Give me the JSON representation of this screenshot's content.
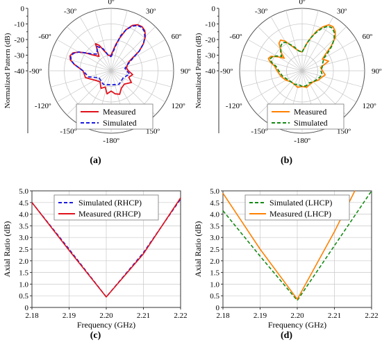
{
  "captions": [
    "(a)",
    "(b)",
    "(c)",
    "(d)"
  ],
  "colors": {
    "measured_a": "#e0101a",
    "simulated_a": "#1a1ae0",
    "measured_b": "#ff8000",
    "simulated_b": "#138a13",
    "grid": "#c8c8c8"
  },
  "chart_data": [
    {
      "type": "polar",
      "ylabel": "Normalized Pattern (dB)",
      "rlim": [
        -40,
        0
      ],
      "radial_ticks": [
        "0",
        "-10",
        "-20",
        "-30",
        "-40"
      ],
      "angle_labels": [
        "0º",
        "30º",
        "60º",
        "90º",
        "120º",
        "150º",
        "-180º",
        "-150º",
        "-120º",
        "-90º",
        "-60º",
        "-30º"
      ],
      "angle_deg": [
        0,
        30,
        60,
        90,
        120,
        150,
        180,
        210,
        240,
        270,
        300,
        330
      ],
      "legend": "bottom-right",
      "series": [
        {
          "name": "Measured",
          "color": "#e0101a",
          "style": "solid",
          "points": [
            [
              0,
              -30
            ],
            [
              10,
              -23
            ],
            [
              15,
              -18
            ],
            [
              20,
              -12
            ],
            [
              25,
              -8
            ],
            [
              30,
              -6
            ],
            [
              35,
              -5.5
            ],
            [
              40,
              -6.5
            ],
            [
              45,
              -9
            ],
            [
              50,
              -13
            ],
            [
              55,
              -18
            ],
            [
              60,
              -25
            ],
            [
              65,
              -28
            ],
            [
              70,
              -29
            ],
            [
              80,
              -30
            ],
            [
              90,
              -29
            ],
            [
              100,
              -26
            ],
            [
              110,
              -28
            ],
            [
              120,
              -25
            ],
            [
              135,
              -28
            ],
            [
              150,
              -27
            ],
            [
              160,
              -24
            ],
            [
              170,
              -25
            ],
            [
              180,
              -27
            ],
            [
              190,
              -25
            ],
            [
              200,
              -29
            ],
            [
              210,
              -27
            ],
            [
              225,
              -30
            ],
            [
              240,
              -28
            ],
            [
              255,
              -23
            ],
            [
              270,
              -22
            ],
            [
              280,
              -16
            ],
            [
              285,
              -13
            ],
            [
              290,
              -12
            ],
            [
              295,
              -13
            ],
            [
              300,
              -16
            ],
            [
              305,
              -20
            ],
            [
              310,
              -24
            ],
            [
              320,
              -28
            ],
            [
              330,
              -20
            ],
            [
              335,
              -22
            ],
            [
              340,
              -26
            ],
            [
              350,
              -30
            ],
            [
              360,
              -30
            ]
          ]
        },
        {
          "name": "Simulated",
          "color": "#1a1ae0",
          "style": "dashed",
          "points": [
            [
              0,
              -31
            ],
            [
              10,
              -24
            ],
            [
              15,
              -17
            ],
            [
              20,
              -12
            ],
            [
              25,
              -8.5
            ],
            [
              30,
              -6.5
            ],
            [
              35,
              -6
            ],
            [
              40,
              -7
            ],
            [
              45,
              -9.5
            ],
            [
              50,
              -13
            ],
            [
              55,
              -18
            ],
            [
              60,
              -24
            ],
            [
              70,
              -29
            ],
            [
              80,
              -31
            ],
            [
              90,
              -30
            ],
            [
              100,
              -28
            ],
            [
              120,
              -31
            ],
            [
              150,
              -30
            ],
            [
              180,
              -31
            ],
            [
              210,
              -30
            ],
            [
              240,
              -31
            ],
            [
              255,
              -25
            ],
            [
              270,
              -22
            ],
            [
              280,
              -16
            ],
            [
              285,
              -13.5
            ],
            [
              290,
              -12.5
            ],
            [
              295,
              -13.5
            ],
            [
              300,
              -16
            ],
            [
              305,
              -20
            ],
            [
              310,
              -23
            ],
            [
              320,
              -26
            ],
            [
              330,
              -22
            ],
            [
              340,
              -25
            ],
            [
              350,
              -30
            ],
            [
              360,
              -31
            ]
          ]
        }
      ],
      "caption": "(a)"
    },
    {
      "type": "polar",
      "ylabel": "Normalized Pattern (dB)",
      "rlim": [
        -40,
        0
      ],
      "radial_ticks": [
        "0",
        "-10",
        "-20",
        "-30",
        "-40"
      ],
      "angle_labels": [
        "0º",
        "30º",
        "60º",
        "90º",
        "120º",
        "150º",
        "-180º",
        "-150º",
        "-120º",
        "-90º",
        "-60º",
        "-30º"
      ],
      "angle_deg": [
        0,
        30,
        60,
        90,
        120,
        150,
        180,
        210,
        240,
        270,
        300,
        330
      ],
      "legend": "bottom-right",
      "series": [
        {
          "name": "Measured",
          "color": "#ff8000",
          "style": "solid",
          "points": [
            [
              0,
              -28
            ],
            [
              10,
              -22
            ],
            [
              15,
              -18
            ],
            [
              20,
              -13
            ],
            [
              25,
              -9
            ],
            [
              30,
              -6
            ],
            [
              35,
              -5.5
            ],
            [
              40,
              -7
            ],
            [
              45,
              -10
            ],
            [
              50,
              -16
            ],
            [
              55,
              -22
            ],
            [
              60,
              -25
            ],
            [
              70,
              -22
            ],
            [
              80,
              -28
            ],
            [
              90,
              -27
            ],
            [
              100,
              -25
            ],
            [
              110,
              -27
            ],
            [
              120,
              -28
            ],
            [
              135,
              -30
            ],
            [
              150,
              -30
            ],
            [
              165,
              -29
            ],
            [
              180,
              -30
            ],
            [
              195,
              -29
            ],
            [
              210,
              -30
            ],
            [
              225,
              -30
            ],
            [
              240,
              -28
            ],
            [
              255,
              -26
            ],
            [
              270,
              -24
            ],
            [
              280,
              -22
            ],
            [
              285,
              -19
            ],
            [
              290,
              -17
            ],
            [
              295,
              -18
            ],
            [
              300,
              -22
            ],
            [
              305,
              -26
            ],
            [
              310,
              -23
            ],
            [
              320,
              -17
            ],
            [
              325,
              -16
            ],
            [
              330,
              -18
            ],
            [
              340,
              -24
            ],
            [
              350,
              -27
            ],
            [
              360,
              -28
            ]
          ]
        },
        {
          "name": "Simulated",
          "color": "#138a13",
          "style": "dashed",
          "points": [
            [
              0,
              -28
            ],
            [
              10,
              -22
            ],
            [
              15,
              -18
            ],
            [
              20,
              -14
            ],
            [
              25,
              -10
            ],
            [
              30,
              -7
            ],
            [
              35,
              -6.5
            ],
            [
              40,
              -8
            ],
            [
              45,
              -11
            ],
            [
              50,
              -15
            ],
            [
              55,
              -20
            ],
            [
              60,
              -24
            ],
            [
              70,
              -26
            ],
            [
              80,
              -27
            ],
            [
              90,
              -28
            ],
            [
              100,
              -27
            ],
            [
              110,
              -28
            ],
            [
              120,
              -29
            ],
            [
              135,
              -30
            ],
            [
              150,
              -31
            ],
            [
              165,
              -30
            ],
            [
              180,
              -30
            ],
            [
              195,
              -31
            ],
            [
              210,
              -30
            ],
            [
              225,
              -30
            ],
            [
              240,
              -29
            ],
            [
              255,
              -27
            ],
            [
              270,
              -25
            ],
            [
              280,
              -23
            ],
            [
              285,
              -20
            ],
            [
              290,
              -18
            ],
            [
              295,
              -19
            ],
            [
              300,
              -21
            ],
            [
              305,
              -24
            ],
            [
              310,
              -22
            ],
            [
              320,
              -19
            ],
            [
              325,
              -18
            ],
            [
              330,
              -19
            ],
            [
              340,
              -23
            ],
            [
              350,
              -27
            ],
            [
              360,
              -28
            ]
          ]
        }
      ],
      "caption": "(b)"
    },
    {
      "type": "line",
      "xlabel": "Frequency (GHz)",
      "ylabel": "Axial Ratio (dB)",
      "xlim": [
        2.18,
        2.22
      ],
      "ylim": [
        0,
        5
      ],
      "xticks": [
        "2.18",
        "2.19",
        "2.20",
        "2.21",
        "2.22"
      ],
      "yticks": [
        "0",
        "0.5",
        "1.0",
        "1.5",
        "2.0",
        "2.5",
        "3.0",
        "3.5",
        "4.0",
        "4.5",
        "5.0"
      ],
      "grid": true,
      "legend": "top-center",
      "series": [
        {
          "name": "Simulated (RHCP)",
          "color": "#1a1ae0",
          "style": "dashed",
          "x": [
            2.18,
            2.19,
            2.2,
            2.21,
            2.22
          ],
          "y": [
            4.5,
            2.5,
            0.45,
            2.35,
            4.65
          ]
        },
        {
          "name": "Measured (RHCP)",
          "color": "#e0101a",
          "style": "solid",
          "x": [
            2.18,
            2.19,
            2.2,
            2.21,
            2.22
          ],
          "y": [
            4.5,
            2.45,
            0.45,
            2.3,
            4.7
          ]
        }
      ],
      "caption": "(c)"
    },
    {
      "type": "line",
      "xlabel": "Frequency (GHz)",
      "ylabel": "Axial Ratio (dB)",
      "xlim": [
        2.18,
        2.22
      ],
      "ylim": [
        0,
        5
      ],
      "xticks": [
        "2.18",
        "2.19",
        "2.20",
        "2.21",
        "2.22"
      ],
      "yticks": [
        "0",
        "0.5",
        "1.0",
        "1.5",
        "2.0",
        "2.5",
        "3.0",
        "3.5",
        "4.0",
        "4.5",
        "5.0"
      ],
      "grid": true,
      "legend": "top-center",
      "series": [
        {
          "name": "Simulated (LHCP)",
          "color": "#138a13",
          "style": "dashed",
          "x": [
            2.18,
            2.19,
            2.2,
            2.21,
            2.22
          ],
          "y": [
            4.15,
            2.2,
            0.3,
            2.65,
            5.0
          ]
        },
        {
          "name": "Measured (LHCP)",
          "color": "#ff8000",
          "style": "solid",
          "x": [
            2.18,
            2.19,
            2.2,
            2.21,
            2.2155
          ],
          "y": [
            4.9,
            2.5,
            0.35,
            3.25,
            5.0
          ]
        }
      ],
      "caption": "(d)"
    }
  ]
}
